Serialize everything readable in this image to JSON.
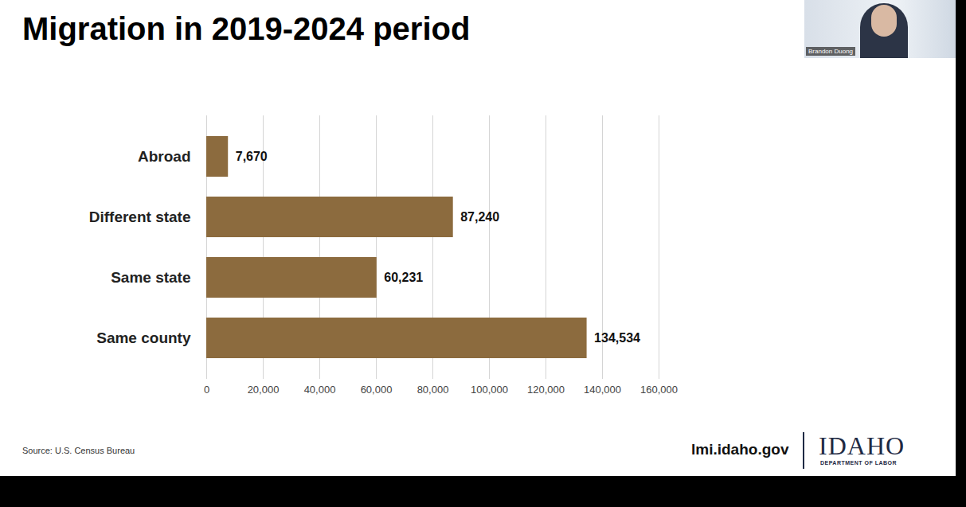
{
  "chart_data": {
    "type": "bar",
    "orientation": "horizontal",
    "title": "Migration in 2019-2024 period",
    "categories": [
      "Abroad",
      "Different state",
      "Same state",
      "Same county"
    ],
    "values": [
      7670,
      87240,
      60231,
      134534
    ],
    "value_labels": [
      "7,670",
      "87,240",
      "60,231",
      "134,534"
    ],
    "data_labels": true,
    "color": "#8c6b3e",
    "xlim": [
      0,
      160000
    ],
    "xticks": [
      0,
      {
        "value": 20000,
        "label": "20,000"
      },
      {
        "value": 40000,
        "label": "40,000"
      },
      {
        "value": 60000,
        "label": "60,000"
      },
      {
        "value": 80000,
        "label": "80,000"
      },
      {
        "value": 100000,
        "label": "100,000"
      },
      {
        "value": 120000,
        "label": "120,000"
      },
      {
        "value": 140000,
        "label": "140,000"
      },
      {
        "value": 160000,
        "label": "160,000"
      }
    ],
    "grid": true
  },
  "slide": {
    "source": "Source: U.S. Census Bureau",
    "website": "lmi.idaho.gov",
    "logo": {
      "name": "IDAHO",
      "subtitle": "DEPARTMENT OF LABOR"
    },
    "speaker": "Brandon Duong"
  }
}
